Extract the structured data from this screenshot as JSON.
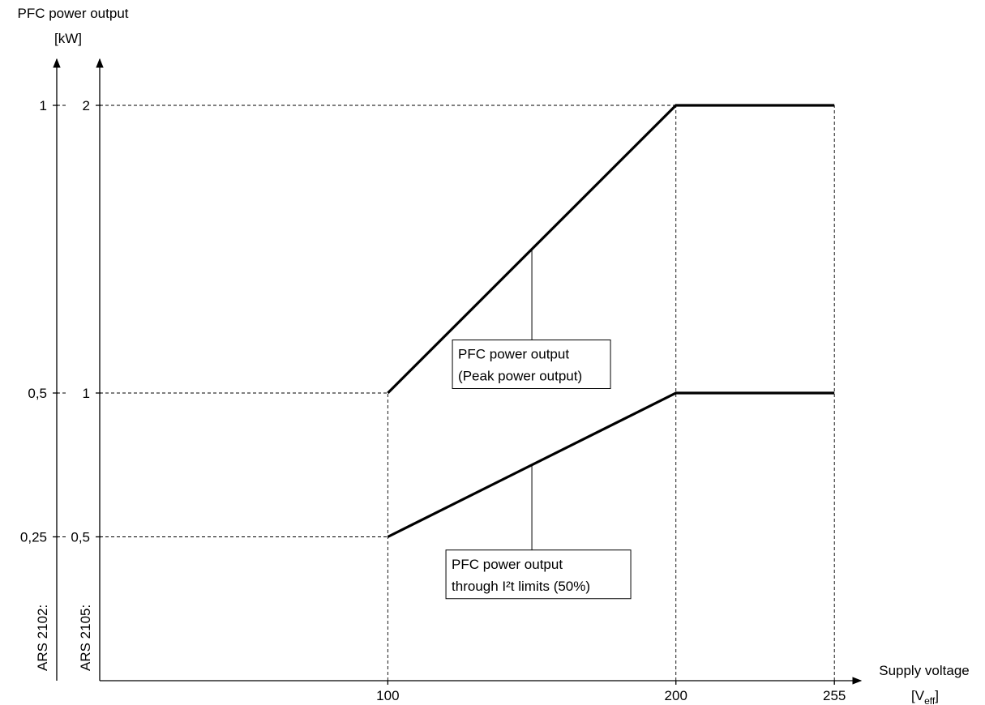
{
  "chart_data": {
    "type": "line",
    "title": "",
    "ylabel_line1": "PFC power output",
    "ylabel_line2": "[kW]",
    "xlabel_line1": "Supply voltage",
    "xlabel_unit_main": "[V",
    "xlabel_unit_sub": "eff",
    "xlabel_unit_close": "]",
    "x_ticks": [
      "100",
      "200",
      "255"
    ],
    "xlim": [
      0,
      255
    ],
    "axis_inner": {
      "label": "ARS 2105:",
      "ticks": [
        "0,5",
        "1",
        "2"
      ],
      "ylim": [
        0,
        2.2
      ]
    },
    "axis_outer": {
      "label": "ARS 2102:",
      "ticks": [
        "0,25",
        "0,5",
        "1"
      ],
      "ylim": [
        0,
        1.1
      ]
    },
    "series": [
      {
        "x": [
          100,
          200,
          255
        ],
        "y": [
          1,
          2,
          2
        ],
        "annotation": [
          "PFC power output",
          "(Peak power output)"
        ]
      },
      {
        "x": [
          100,
          200,
          255
        ],
        "y": [
          0.5,
          1,
          1
        ],
        "annotation": [
          "PFC power output",
          "through I²t limits (50%)"
        ]
      }
    ],
    "grid": "dashed guide lines at x = 100, 200, 255 and y = 0.5, 1, 2"
  }
}
